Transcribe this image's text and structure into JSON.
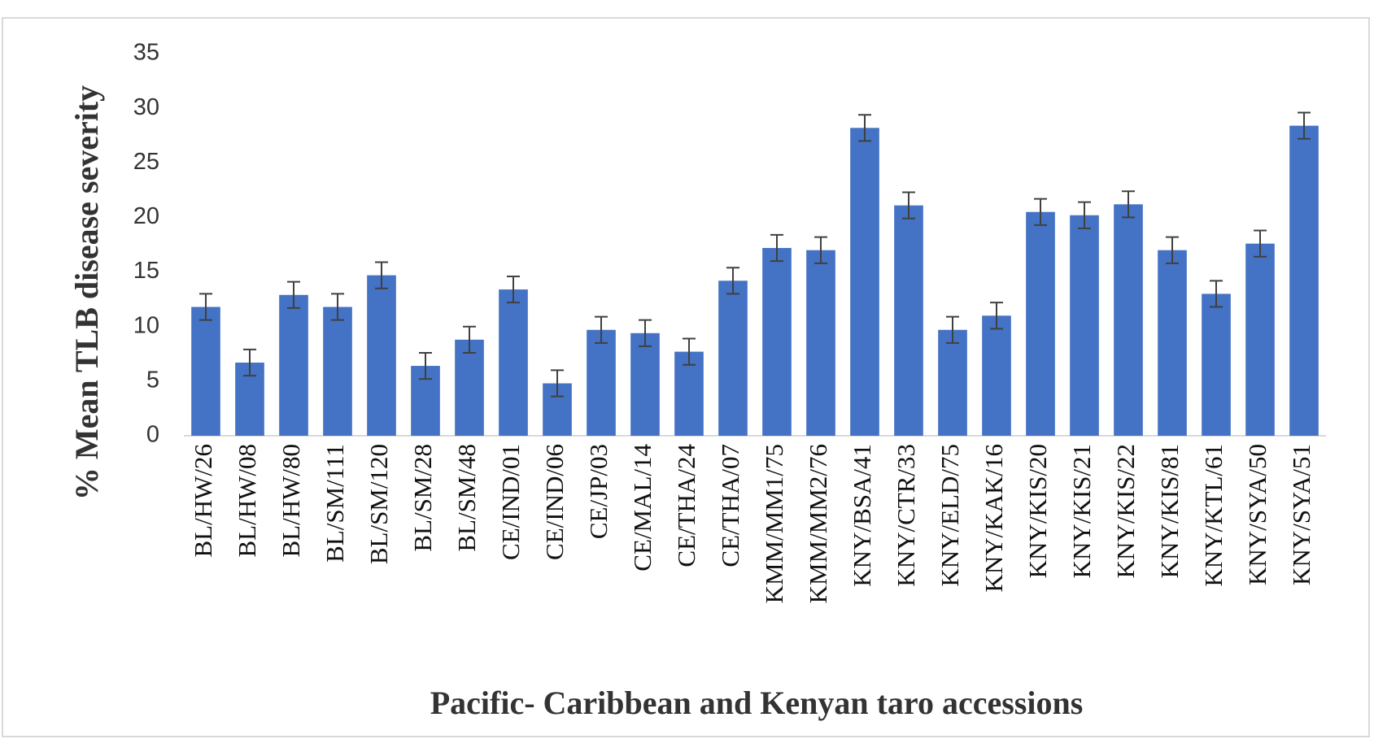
{
  "chart_data": {
    "type": "bar",
    "y_label": "% Mean TLB disease severity",
    "x_label": "Pacific- Caribbean and Kenyan taro accessions",
    "categories": [
      "BL/HW/26",
      "BL/HW/08",
      "BL/HW/80",
      "BL/SM/111",
      "BL/SM/120",
      "BL/SM/28",
      "BL/SM/48",
      "CE/IND/01",
      "CE/IND/06",
      "CE/JP/03",
      "CE/MAL/14",
      "CE/THA/24",
      "CE/THA/07",
      "KMM/MM1/75",
      "KMM/MM2/76",
      "KNY/BSA/41",
      "KNY/CTR/33",
      "KNY/ELD/75",
      "KNY/KAK/16",
      "KNY/KIS/20",
      "KNY/KIS/21",
      "KNY/KIS/22",
      "KNY/KIS/81",
      "KNY/KTL/61",
      "KNY/SYA/50",
      "KNY/SYA/51"
    ],
    "values": [
      11.8,
      6.7,
      12.9,
      11.8,
      14.7,
      6.4,
      8.8,
      13.4,
      4.8,
      9.7,
      9.4,
      7.7,
      14.2,
      17.2,
      17.0,
      28.2,
      21.1,
      9.7,
      11.0,
      20.5,
      20.2,
      21.2,
      17.0,
      13.0,
      17.6,
      28.4
    ],
    "errors": [
      1.2,
      1.2,
      1.2,
      1.2,
      1.2,
      1.2,
      1.2,
      1.2,
      1.2,
      1.2,
      1.2,
      1.2,
      1.2,
      1.2,
      1.2,
      1.2,
      1.2,
      1.2,
      1.2,
      1.2,
      1.2,
      1.2,
      1.2,
      1.2,
      1.2,
      1.2
    ],
    "color": "#4472c4",
    "error_color": "#404040",
    "ylim": [
      0,
      35
    ],
    "yticks": [
      0,
      5,
      10,
      15,
      20,
      25,
      30,
      35
    ],
    "grid": false
  }
}
